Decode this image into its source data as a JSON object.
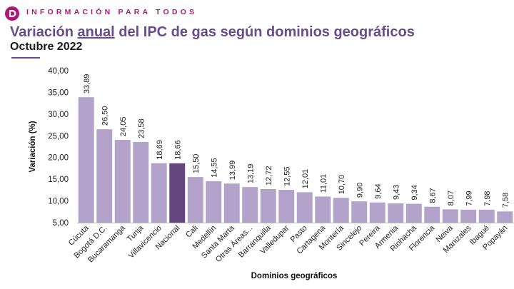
{
  "header": {
    "brand": "INFORMACIÓN PARA TODOS",
    "title_part1": "Variación ",
    "title_underlined": "anual",
    "title_part2": " del IPC de gas según dominios geográficos",
    "subtitle": "Octubre 2022"
  },
  "colors": {
    "bar": "#b3a2c9",
    "highlight": "#65477f",
    "brand": "#b0177a",
    "title": "#6a4c8c"
  },
  "chart_data": {
    "type": "bar",
    "xlabel": "Dominios geográficos",
    "ylabel": "Variación (%)",
    "ylim": [
      5,
      40
    ],
    "yticks": [
      "5,00",
      "10,00",
      "15,00",
      "20,00",
      "25,00",
      "30,00",
      "35,00",
      "40,00"
    ],
    "grid": false,
    "highlight_category": "Nacional",
    "categories": [
      "Cúcuta",
      "Bogotá D.C.",
      "Bucaramanga",
      "Tunja",
      "Villavicencio",
      "Nacional",
      "Cali",
      "Medellín",
      "Santa Marta",
      "Otras Áreas...",
      "Barranquilla",
      "Valledupar",
      "Pasto",
      "Cartagena",
      "Montería",
      "Sincelejo",
      "Pereira",
      "Armenia",
      "Riohacha",
      "Florencia",
      "Neiva",
      "Manizales",
      "Ibagué",
      "Popayán"
    ],
    "values": [
      33.89,
      26.5,
      24.05,
      23.58,
      18.69,
      18.66,
      15.5,
      14.55,
      13.99,
      13.19,
      12.72,
      12.55,
      12.01,
      11.01,
      10.7,
      9.9,
      9.64,
      9.43,
      9.34,
      8.67,
      8.07,
      7.99,
      7.98,
      7.58
    ],
    "value_labels": [
      "33,89",
      "26,50",
      "24,05",
      "23,58",
      "18,69",
      "18,66",
      "15,50",
      "14,55",
      "13,99",
      "13,19",
      "12,72",
      "12,55",
      "12,01",
      "11,01",
      "10,70",
      "9,90",
      "9,64",
      "9,43",
      "9,34",
      "8,67",
      "8,07",
      "7,99",
      "7,98",
      "7,58"
    ]
  }
}
